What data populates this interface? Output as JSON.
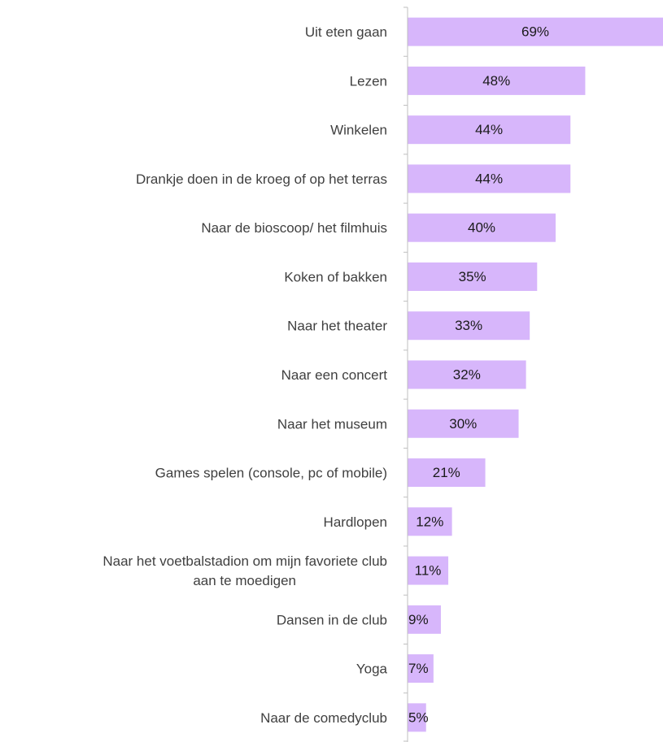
{
  "chart_data": {
    "type": "bar",
    "orientation": "horizontal",
    "title": "",
    "xlabel": "",
    "ylabel": "",
    "xlim": [
      0,
      69
    ],
    "grid": false,
    "legend": "none",
    "bar_color": "#d7b6fb",
    "value_suffix": "%",
    "categories": [
      "Uit eten gaan",
      "Lezen",
      "Winkelen",
      "Drankje doen in de kroeg of op het terras",
      "Naar de bioscoop/ het filmhuis",
      "Koken of bakken",
      "Naar het theater",
      "Naar een concert",
      "Naar het museum",
      "Games spelen (console, pc of mobile)",
      "Hardlopen",
      "Naar het voetbalstadion om mijn favoriete club aan te moedigen",
      "Dansen in de club",
      "Yoga",
      "Naar de comedyclub"
    ],
    "category_lines": [
      [
        "Uit eten gaan"
      ],
      [
        "Lezen"
      ],
      [
        "Winkelen"
      ],
      [
        "Drankje doen in de kroeg of op het terras"
      ],
      [
        "Naar de bioscoop/ het filmhuis"
      ],
      [
        "Koken of bakken"
      ],
      [
        "Naar het theater"
      ],
      [
        "Naar een concert"
      ],
      [
        "Naar het museum"
      ],
      [
        "Games spelen (console, pc of mobile)"
      ],
      [
        "Hardlopen"
      ],
      [
        "Naar het voetbalstadion om mijn favoriete club",
        "aan te moedigen"
      ],
      [
        "Dansen in de club"
      ],
      [
        "Yoga"
      ],
      [
        "Naar de comedyclub"
      ]
    ],
    "values": [
      69,
      48,
      44,
      44,
      40,
      35,
      33,
      32,
      30,
      21,
      12,
      11,
      9,
      7,
      5
    ],
    "value_labels": [
      "69%",
      "48%",
      "44%",
      "44%",
      "40%",
      "35%",
      "33%",
      "32%",
      "30%",
      "21%",
      "12%",
      "11%",
      "9%",
      "7%",
      "5%"
    ]
  }
}
